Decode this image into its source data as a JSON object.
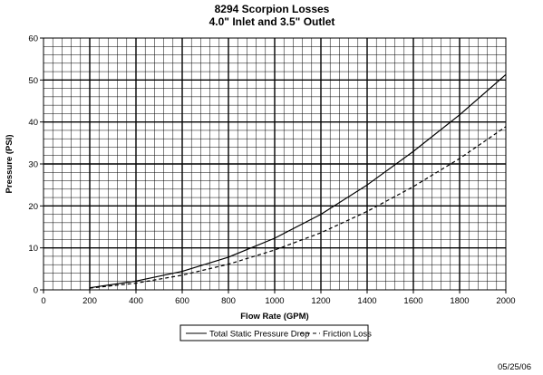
{
  "chart_data": {
    "type": "line",
    "title": "8294 Scorpion Losses",
    "subtitle": "4.0\" Inlet and 3.5\" Outlet",
    "xlabel": "Flow Rate (GPM)",
    "ylabel": "Pressure (PSI)",
    "xlim": [
      0,
      2000
    ],
    "ylim": [
      0,
      60
    ],
    "x_ticks": [
      "0",
      "200",
      "400",
      "600",
      "800",
      "1000",
      "1200",
      "1400",
      "1600",
      "1800",
      "2000"
    ],
    "y_ticks": [
      "0",
      "10",
      "20",
      "30",
      "40",
      "50",
      "60"
    ],
    "grid": {
      "major": true,
      "minor": true
    },
    "legend_position": "bottom-center",
    "series": [
      {
        "name": "Total Static Pressure Drop",
        "style": "solid",
        "color": "#000000",
        "x": [
          200,
          400,
          600,
          800,
          1000,
          1200,
          1400,
          1600,
          1800,
          2000
        ],
        "y": [
          0.5,
          2.1,
          4.4,
          7.8,
          12.3,
          18.0,
          25.0,
          33.0,
          41.7,
          51.3
        ]
      },
      {
        "name": "Friction Loss",
        "style": "dashed",
        "color": "#000000",
        "x": [
          200,
          400,
          600,
          800,
          1000,
          1200,
          1400,
          1600,
          1800,
          2000
        ],
        "y": [
          0.4,
          1.6,
          3.5,
          6.1,
          9.5,
          13.6,
          18.7,
          24.6,
          31.3,
          38.9
        ]
      }
    ]
  },
  "footer": {
    "date": "05/25/06"
  }
}
